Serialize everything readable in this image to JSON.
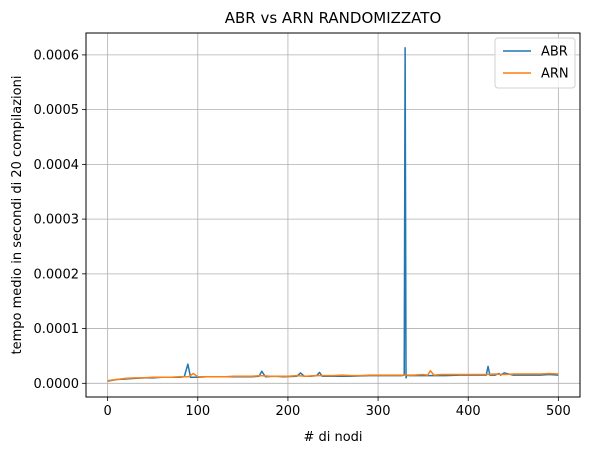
{
  "chart_data": {
    "type": "line",
    "title": "ABR vs ARN RANDOMIZZATO",
    "xlabel": "# di nodi",
    "ylabel": "tempo medio in secondi di 20 compilazioni",
    "xlim": [
      -24,
      524
    ],
    "ylim": [
      -2.5e-05,
      0.00064
    ],
    "xticks": [
      0,
      100,
      200,
      300,
      400,
      500
    ],
    "xtick_labels": [
      "0",
      "100",
      "200",
      "300",
      "400",
      "500"
    ],
    "yticks": [
      0.0,
      0.0001,
      0.0002,
      0.0003,
      0.0004,
      0.0005,
      0.0006
    ],
    "ytick_labels": [
      "0.0000",
      "0.0001",
      "0.0002",
      "0.0003",
      "0.0004",
      "0.0005",
      "0.0006"
    ],
    "grid": true,
    "legend_position": "top-right",
    "series": [
      {
        "name": "ABR",
        "color": "#1f77b4",
        "x": [
          0,
          10,
          20,
          30,
          40,
          50,
          60,
          70,
          80,
          85,
          89,
          92,
          95,
          100,
          110,
          120,
          130,
          140,
          150,
          160,
          168,
          171,
          175,
          185,
          195,
          210,
          214,
          218,
          225,
          232,
          235,
          238,
          250,
          270,
          290,
          300,
          310,
          320,
          326,
          329,
          330,
          331,
          332,
          335,
          345,
          355,
          365,
          375,
          390,
          405,
          415,
          420,
          422,
          424,
          430,
          434,
          436,
          440,
          450,
          460,
          470,
          480,
          490,
          500
        ],
        "values": [
          4e-06,
          7e-06,
          8e-06,
          9e-06,
          1e-05,
          1e-05,
          1.1e-05,
          1.1e-05,
          1.1e-05,
          1.2e-05,
          3.5e-05,
          1.1e-05,
          1.1e-05,
          1.1e-05,
          1.2e-05,
          1.2e-05,
          1.2e-05,
          1.2e-05,
          1.2e-05,
          1.2e-05,
          1.3e-05,
          2.2e-05,
          1.2e-05,
          1.3e-05,
          1.2e-05,
          1.3e-05,
          1.9e-05,
          1.3e-05,
          1.3e-05,
          1.4e-05,
          2e-05,
          1.3e-05,
          1.3e-05,
          1.3e-05,
          1.4e-05,
          1.4e-05,
          1.4e-05,
          1.4e-05,
          1.4e-05,
          1.5e-05,
          0.000613,
          1e-05,
          1.5e-05,
          1.4e-05,
          1.4e-05,
          1.4e-05,
          1.4e-05,
          1.4e-05,
          1.5e-05,
          1.5e-05,
          1.5e-05,
          1.5e-05,
          3.1e-05,
          1.5e-05,
          1.5e-05,
          1.8e-05,
          1.5e-05,
          1.9e-05,
          1.5e-05,
          1.5e-05,
          1.5e-05,
          1.5e-05,
          1.6e-05,
          1.5e-05
        ]
      },
      {
        "name": "ARN",
        "color": "#ff7f0e",
        "x": [
          0,
          10,
          20,
          30,
          40,
          50,
          60,
          70,
          80,
          90,
          95,
          100,
          110,
          120,
          130,
          140,
          150,
          160,
          170,
          180,
          190,
          200,
          210,
          220,
          230,
          240,
          250,
          260,
          270,
          280,
          290,
          300,
          310,
          320,
          330,
          340,
          350,
          355,
          358,
          362,
          370,
          380,
          390,
          400,
          410,
          420,
          430,
          440,
          450,
          460,
          470,
          480,
          490,
          500
        ],
        "values": [
          5e-06,
          7e-06,
          9e-06,
          1e-05,
          1e-05,
          1.1e-05,
          1.1e-05,
          1.1e-05,
          1.2e-05,
          1.2e-05,
          1.8e-05,
          1.2e-05,
          1.2e-05,
          1.2e-05,
          1.2e-05,
          1.3e-05,
          1.3e-05,
          1.3e-05,
          1.4e-05,
          1.3e-05,
          1.3e-05,
          1.3e-05,
          1.4e-05,
          1.3e-05,
          1.4e-05,
          1.4e-05,
          1.4e-05,
          1.5e-05,
          1.4e-05,
          1.4e-05,
          1.5e-05,
          1.5e-05,
          1.5e-05,
          1.5e-05,
          1.5e-05,
          1.5e-05,
          1.6e-05,
          1.5e-05,
          2.3e-05,
          1.5e-05,
          1.6e-05,
          1.6e-05,
          1.6e-05,
          1.6e-05,
          1.6e-05,
          1.6e-05,
          1.7e-05,
          1.6e-05,
          1.7e-05,
          1.7e-05,
          1.7e-05,
          1.7e-05,
          1.8e-05,
          1.7e-05
        ]
      }
    ]
  }
}
